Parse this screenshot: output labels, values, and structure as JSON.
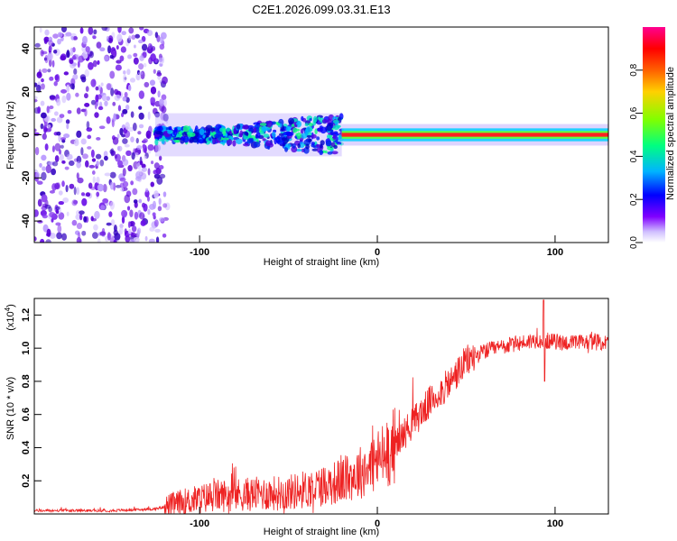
{
  "title": "C2E1.2026.099.03.31.E13",
  "chart_data": [
    {
      "type": "heatmap",
      "name": "spectrogram",
      "xlabel": "Height of straight line (km)",
      "ylabel": "Frequency (Hz)",
      "xlim": [
        -193,
        130
      ],
      "ylim": [
        -50,
        50
      ],
      "xticks": [
        -100,
        0,
        100
      ],
      "xtick_labels": [
        "-100",
        "0",
        "100"
      ],
      "yticks": [
        -40,
        -20,
        0,
        20,
        40
      ],
      "ytick_labels": [
        "-40",
        "-20",
        "0",
        "20",
        "40"
      ],
      "colorbar": {
        "label": "Normalized spectral amplitude",
        "range": [
          0,
          1
        ],
        "ticks": [
          0.0,
          0.2,
          0.4,
          0.6,
          0.8
        ],
        "tick_labels": [
          "0.0",
          "0.2",
          "0.4",
          "0.6",
          "0.8"
        ],
        "colormap": [
          "#ffffff",
          "#c8b4ff",
          "#7800ff",
          "#0000ff",
          "#00c8ff",
          "#00ff64",
          "#c8ff00",
          "#ffc800",
          "#ff2800",
          "#ff0096"
        ]
      },
      "regions": [
        {
          "name": "scattered-noise",
          "x": [
            -193,
            -118
          ],
          "y": [
            -50,
            50
          ],
          "amplitude": 0.08
        },
        {
          "name": "broad-band",
          "x": [
            -125,
            -20
          ],
          "y": [
            -10,
            10
          ],
          "amplitude": 0.35
        },
        {
          "name": "narrow-line",
          "x": [
            -20,
            130
          ],
          "y": [
            -2,
            2
          ],
          "amplitude": 0.95
        }
      ]
    },
    {
      "type": "line",
      "name": "snr",
      "xlabel": "Height of straight line (km)",
      "ylabel": "SNR (10 * v/v)",
      "y_multiplier_label": "(x10",
      "y_multiplier_exp": "4",
      "y_multiplier_close": ")",
      "xlim": [
        -193,
        130
      ],
      "ylim": [
        0,
        1.3
      ],
      "xticks": [
        -100,
        0,
        100
      ],
      "xtick_labels": [
        "-100",
        "0",
        "100"
      ],
      "yticks": [
        0.2,
        0.4,
        0.6,
        0.8,
        1.0,
        1.2
      ],
      "ytick_labels": [
        "0.2",
        "0.4",
        "0.6",
        "0.8",
        "1.0",
        "1.2"
      ],
      "color": "#ee2222",
      "trend": {
        "x": [
          -193,
          -150,
          -125,
          -110,
          -90,
          -70,
          -50,
          -35,
          -20,
          -10,
          0,
          10,
          20,
          30,
          40,
          50,
          60,
          75,
          90,
          100,
          110,
          120,
          130
        ],
        "y": [
          0.02,
          0.02,
          0.03,
          0.07,
          0.11,
          0.12,
          0.13,
          0.16,
          0.2,
          0.25,
          0.32,
          0.42,
          0.55,
          0.68,
          0.78,
          0.92,
          0.98,
          1.02,
          1.05,
          1.04,
          1.03,
          1.04,
          1.03
        ]
      },
      "spike": {
        "x": 93.5,
        "ymax": 1.29,
        "ymin": 0.8
      }
    }
  ]
}
